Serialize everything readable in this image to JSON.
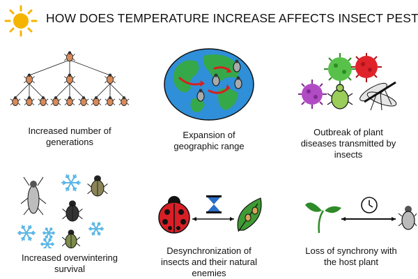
{
  "title": "HOW DOES TEMPERATURE INCREASE AFFECTS INSECT PEST",
  "icons": {
    "header": "sun-icon",
    "p1": "insect-generation-tree-icon",
    "p2": "globe-with-insects-icon",
    "p3": "pathogens-and-insects-icon",
    "p4": "snowflakes-and-beetles-icon",
    "p5": "ladybug-hourglass-leaf-icon",
    "p6": "seedling-clock-bug-icon"
  },
  "colors": {
    "sun": "#f5b400",
    "ocean": "#2f8fd8",
    "land": "#35a84a",
    "arrow": "#d62020",
    "virus_green": "#58c14a",
    "virus_red": "#e0232a",
    "virus_purple": "#b14bc4",
    "ladybug": "#d91f26",
    "hourglass": "#2b6ec9",
    "snow": "#5ab6e6",
    "leaf": "#3e9b35"
  },
  "panels": [
    {
      "caption_lines": [
        "Increased number of",
        "generations"
      ]
    },
    {
      "caption_lines": [
        "Expansion of",
        "geographic range"
      ]
    },
    {
      "caption_lines": [
        "Outbreak of plant",
        "diseases transmitted by",
        "insects"
      ]
    },
    {
      "caption_lines": [
        "Increased overwintering",
        "survival"
      ]
    },
    {
      "caption_lines": [
        "Desynchronization of",
        "insects and their natural",
        "enemies"
      ]
    },
    {
      "caption_lines": [
        "Loss of synchrony with",
        "the host plant"
      ]
    }
  ]
}
